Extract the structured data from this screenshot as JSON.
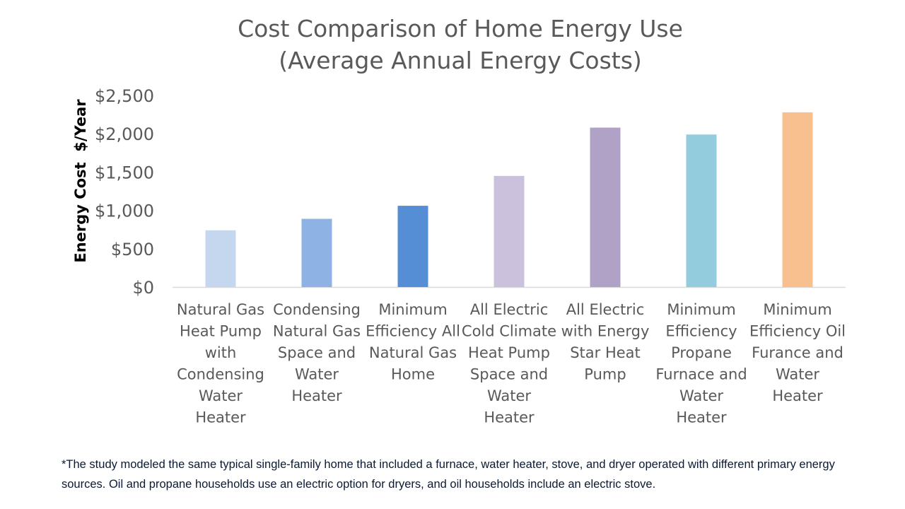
{
  "chart_data": {
    "type": "bar",
    "title": [
      "Cost Comparison of Home Energy Use",
      "(Average Annual Energy Costs)"
    ],
    "ylabel": "Energy Cost  $/Year",
    "xlabel": "",
    "ylim": [
      0,
      2500
    ],
    "yticks": [
      0,
      500,
      1000,
      1500,
      2000,
      2500
    ],
    "ytick_labels": [
      "$0",
      "$500",
      "$1,000",
      "$1,500",
      "$2,000",
      "$2,500"
    ],
    "grid": false,
    "legend": false,
    "categories": [
      [
        "Natural Gas",
        "Heat Pump",
        "with",
        "Condensing",
        "Water",
        "Heater"
      ],
      [
        "Condensing",
        "Natural Gas",
        "Space and",
        "Water",
        "Heater"
      ],
      [
        "Minimum",
        "Efficiency All",
        "Natural Gas",
        "Home"
      ],
      [
        "All Electric",
        "Cold Climate",
        "Heat Pump",
        "Space and",
        "Water",
        "Heater"
      ],
      [
        "All Electric",
        "with Energy",
        "Star Heat",
        "Pump"
      ],
      [
        "Minimum",
        "Efficiency",
        "Propane",
        "Furnace and",
        "Water",
        "Heater"
      ],
      [
        "Minimum",
        "Efficiency Oil",
        "Furance and",
        "Water",
        "Heater"
      ]
    ],
    "values": [
      740,
      890,
      1060,
      1450,
      2080,
      1990,
      2280
    ],
    "colors": [
      "#c5d7ef",
      "#8eb2e3",
      "#558ed5",
      "#ccc1dc",
      "#b0a2c7",
      "#93cddd",
      "#f9c08f"
    ]
  },
  "footnote": [
    "*The study modeled the same typical single-family home that included a furnace, water heater, stove, and dryer operated with different primary energy",
    "sources. Oil and propane households use an electric option for dryers, and oil households include an electric stove."
  ]
}
